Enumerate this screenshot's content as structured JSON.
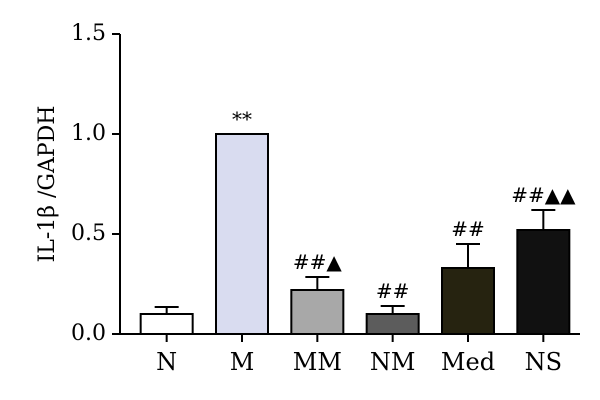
{
  "chart_data": {
    "type": "bar",
    "categories": [
      "N",
      "M",
      "MM",
      "NM",
      "Med",
      "NS"
    ],
    "values": [
      0.1,
      1.0,
      0.22,
      0.1,
      0.33,
      0.52
    ],
    "error": [
      0.035,
      0.0,
      0.065,
      0.04,
      0.12,
      0.1
    ],
    "annotations": [
      "",
      "**",
      "##▲",
      "##",
      "##",
      "##▲▲"
    ],
    "colors": [
      "#ffffff",
      "#d9dcf0",
      "#a8a8a8",
      "#5c5c5c",
      "#262310",
      "#111111"
    ],
    "ylabel": "IL-1β /GAPDH",
    "ylim": [
      0,
      1.5
    ],
    "yticks": [
      "0.0",
      "0.5",
      "1.0",
      "1.5"
    ],
    "grid": false
  }
}
